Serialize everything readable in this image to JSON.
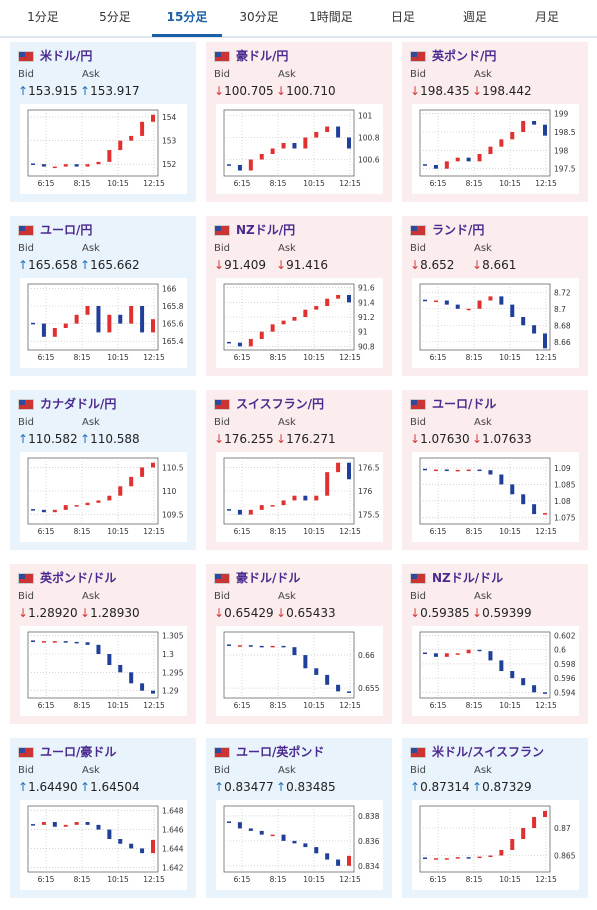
{
  "tabs": [
    "1分足",
    "5分足",
    "15分足",
    "30分足",
    "1時間足",
    "日足",
    "週足",
    "月足"
  ],
  "active_tab": 2,
  "bid_label": "Bid",
  "ask_label": "Ask",
  "chart_xticks": [
    "6:15",
    "8:15",
    "10:15",
    "12:15"
  ],
  "cards": [
    {
      "title": "米ドル/円",
      "bid": "↑153.915",
      "ask": "↑153.917",
      "trend": "up",
      "chart": {
        "type": "candlestick",
        "values": [
          152.0,
          151.9,
          151.9,
          152.0,
          151.9,
          152.0,
          152.1,
          152.6,
          153.0,
          153.2,
          153.8,
          154.1
        ],
        "ylim": [
          151.5,
          154.3
        ],
        "yticks": [
          152,
          153,
          154
        ]
      }
    },
    {
      "title": "豪ドル/円",
      "bid": "↓100.705",
      "ask": "↓100.710",
      "trend": "down",
      "chart": {
        "type": "candlestick",
        "values": [
          100.55,
          100.5,
          100.6,
          100.65,
          100.7,
          100.75,
          100.7,
          100.8,
          100.85,
          100.9,
          100.8,
          100.7
        ],
        "ylim": [
          100.45,
          101.05
        ],
        "yticks": [
          100.6,
          100.8,
          101
        ]
      }
    },
    {
      "title": "英ポンド/円",
      "bid": "↓198.435",
      "ask": "↓198.442",
      "trend": "down",
      "chart": {
        "type": "candlestick",
        "values": [
          197.6,
          197.5,
          197.7,
          197.8,
          197.7,
          197.9,
          198.1,
          198.3,
          198.5,
          198.8,
          198.7,
          198.4
        ],
        "ylim": [
          197.3,
          199.1
        ],
        "yticks": [
          197.5,
          198,
          198.5,
          199
        ]
      }
    },
    {
      "title": "ユーロ/円",
      "bid": "↑165.658",
      "ask": "↑165.662",
      "trend": "up",
      "chart": {
        "type": "candlestick",
        "values": [
          165.6,
          165.45,
          165.55,
          165.6,
          165.7,
          165.8,
          165.5,
          165.7,
          165.6,
          165.8,
          165.5,
          165.65
        ],
        "ylim": [
          165.3,
          166.05
        ],
        "yticks": [
          165.4,
          165.6,
          165.8,
          166
        ]
      }
    },
    {
      "title": "NZドル/円",
      "bid": "↓91.409",
      "ask": "↓91.416",
      "trend": "down",
      "chart": {
        "type": "candlestick",
        "values": [
          90.85,
          90.8,
          90.9,
          91.0,
          91.1,
          91.15,
          91.2,
          91.3,
          91.35,
          91.45,
          91.5,
          91.4
        ],
        "ylim": [
          90.75,
          91.65
        ],
        "yticks": [
          90.8,
          91,
          91.2,
          91.4,
          91.6
        ]
      }
    },
    {
      "title": "ランド/円",
      "bid": "↓8.652",
      "ask": "↓8.661",
      "trend": "down",
      "chart": {
        "type": "candlestick",
        "values": [
          8.71,
          8.71,
          8.705,
          8.7,
          8.7,
          8.71,
          8.715,
          8.705,
          8.69,
          8.68,
          8.67,
          8.652
        ],
        "ylim": [
          8.65,
          8.73
        ],
        "yticks": [
          8.66,
          8.68,
          8.7,
          8.72
        ]
      }
    },
    {
      "title": "カナダドル/円",
      "bid": "↑110.582",
      "ask": "↑110.588",
      "trend": "up",
      "chart": {
        "type": "candlestick",
        "values": [
          109.6,
          109.55,
          109.6,
          109.7,
          109.7,
          109.75,
          109.8,
          109.9,
          110.1,
          110.3,
          110.5,
          110.6
        ],
        "ylim": [
          109.3,
          110.7
        ],
        "yticks": [
          109.5,
          110,
          110.5
        ]
      }
    },
    {
      "title": "スイスフラン/円",
      "bid": "↓176.255",
      "ask": "↓176.271",
      "trend": "down",
      "chart": {
        "type": "candlestick",
        "values": [
          175.6,
          175.5,
          175.6,
          175.7,
          175.7,
          175.8,
          175.9,
          175.8,
          175.9,
          176.4,
          176.6,
          176.25
        ],
        "ylim": [
          175.3,
          176.7
        ],
        "yticks": [
          175.5,
          176,
          176.5
        ]
      }
    },
    {
      "title": "ユーロ/ドル",
      "bid": "↓1.07630",
      "ask": "↓1.07633",
      "trend": "down",
      "chart": {
        "type": "candlestick",
        "values": [
          1.0895,
          1.0895,
          1.0893,
          1.0894,
          1.0895,
          1.0893,
          1.088,
          1.085,
          1.082,
          1.079,
          1.076,
          1.0763
        ],
        "ylim": [
          1.073,
          1.093
        ],
        "yticks": [
          1.075,
          1.08,
          1.085,
          1.09
        ]
      }
    },
    {
      "title": "英ポンド/ドル",
      "bid": "↓1.28920",
      "ask": "↓1.28930",
      "trend": "down",
      "chart": {
        "type": "candlestick",
        "values": [
          1.3035,
          1.3035,
          1.3035,
          1.3033,
          1.3032,
          1.3025,
          1.3,
          1.297,
          1.295,
          1.292,
          1.29,
          1.2892
        ],
        "ylim": [
          1.288,
          1.306
        ],
        "yticks": [
          1.29,
          1.295,
          1.3,
          1.305
        ]
      }
    },
    {
      "title": "豪ドル/ドル",
      "bid": "↓0.65429",
      "ask": "↓0.65433",
      "trend": "down",
      "chart": {
        "type": "candlestick",
        "values": [
          0.6615,
          0.6615,
          0.6614,
          0.6613,
          0.6614,
          0.6612,
          0.66,
          0.658,
          0.657,
          0.6555,
          0.6545,
          0.6543
        ],
        "ylim": [
          0.6535,
          0.6635
        ],
        "yticks": [
          0.655,
          0.66
        ]
      }
    },
    {
      "title": "NZドル/ドル",
      "bid": "↓0.59385",
      "ask": "↓0.59399",
      "trend": "down",
      "chart": {
        "type": "candlestick",
        "values": [
          0.5995,
          0.599,
          0.5995,
          0.5995,
          0.6,
          0.5998,
          0.5985,
          0.597,
          0.596,
          0.595,
          0.594,
          0.5939
        ],
        "ylim": [
          0.5932,
          0.6025
        ],
        "yticks": [
          0.594,
          0.596,
          0.598,
          0.6,
          0.602
        ]
      }
    },
    {
      "title": "ユーロ/豪ドル",
      "bid": "↑1.64490",
      "ask": "↑1.64504",
      "trend": "up",
      "chart": {
        "type": "candlestick",
        "values": [
          1.6465,
          1.6468,
          1.6463,
          1.6465,
          1.6468,
          1.6465,
          1.646,
          1.645,
          1.6445,
          1.644,
          1.6435,
          1.6449
        ],
        "ylim": [
          1.6415,
          1.6485
        ],
        "yticks": [
          1.642,
          1.644,
          1.646,
          1.648
        ]
      }
    },
    {
      "title": "ユーロ/英ポンド",
      "bid": "↑0.83477",
      "ask": "↑0.83485",
      "trend": "up",
      "chart": {
        "type": "candlestick",
        "values": [
          0.8375,
          0.837,
          0.8368,
          0.8365,
          0.8365,
          0.836,
          0.8358,
          0.8355,
          0.835,
          0.8345,
          0.834,
          0.8348
        ],
        "ylim": [
          0.8335,
          0.8388
        ],
        "yticks": [
          0.834,
          0.836,
          0.838
        ]
      }
    },
    {
      "title": "米ドル/スイスフラン",
      "bid": "↑0.87314",
      "ask": "↑0.87329",
      "trend": "up",
      "chart": {
        "type": "candlestick",
        "values": [
          0.8645,
          0.8645,
          0.8645,
          0.8647,
          0.8646,
          0.8648,
          0.865,
          0.866,
          0.868,
          0.87,
          0.872,
          0.8731
        ],
        "ylim": [
          0.862,
          0.874
        ],
        "yticks": [
          0.865,
          0.87
        ]
      }
    }
  ]
}
